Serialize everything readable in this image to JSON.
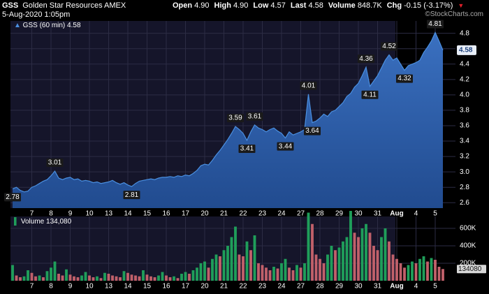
{
  "header": {
    "symbol": "GSS",
    "name": "Golden Star Resources",
    "exchange": "AMEX",
    "datetime": "5-Aug-2020 1:05pm",
    "credit": "©StockCharts.com",
    "quote": [
      {
        "label": "Open",
        "value": "4.90"
      },
      {
        "label": "High",
        "value": "4.90"
      },
      {
        "label": "Low",
        "value": "4.57"
      },
      {
        "label": "Last",
        "value": "4.58"
      },
      {
        "label": "Volume",
        "value": "848.7K"
      },
      {
        "label": "Chg",
        "value": "-0.15 (-3.17%)"
      }
    ]
  },
  "chart_data": [
    {
      "type": "area",
      "categories": [
        null,
        null,
        null,
        null,
        null,
        "7",
        null,
        null,
        null,
        null,
        "8",
        null,
        null,
        null,
        null,
        "9",
        null,
        null,
        null,
        null,
        "10",
        null,
        null,
        null,
        null,
        "13",
        null,
        null,
        null,
        null,
        "14",
        null,
        null,
        null,
        null,
        "15",
        null,
        null,
        null,
        null,
        "16",
        null,
        null,
        null,
        null,
        "17",
        null,
        null,
        null,
        null,
        "20",
        null,
        null,
        null,
        null,
        "21",
        null,
        null,
        null,
        null,
        "22",
        null,
        null,
        null,
        null,
        "23",
        null,
        null,
        null,
        null,
        "24",
        null,
        null,
        null,
        null,
        "27",
        null,
        null,
        null,
        null,
        "28",
        null,
        null,
        null,
        null,
        "29",
        null,
        null,
        null,
        null,
        "30",
        null,
        null,
        null,
        null,
        "31",
        null,
        null,
        null,
        null,
        "Aug",
        null,
        null,
        null,
        null,
        "4",
        null,
        null,
        null,
        null,
        "5",
        null,
        null
      ],
      "series": [
        {
          "name": "GSS (60 min)",
          "color": "#4a8fe0",
          "fill": "#2a5ca8",
          "values": [
            2.78,
            2.8,
            2.76,
            2.74,
            2.75,
            2.8,
            2.82,
            2.85,
            2.88,
            2.9,
            2.95,
            3.01,
            2.92,
            2.9,
            2.92,
            2.93,
            2.9,
            2.91,
            2.88,
            2.89,
            2.88,
            2.86,
            2.87,
            2.85,
            2.86,
            2.87,
            2.89,
            2.86,
            2.84,
            2.86,
            2.83,
            2.81,
            2.85,
            2.88,
            2.89,
            2.9,
            2.91,
            2.9,
            2.92,
            2.93,
            2.93,
            2.94,
            2.93,
            2.95,
            2.94,
            2.96,
            2.95,
            2.98,
            3.02,
            3.08,
            3.1,
            3.09,
            3.15,
            3.22,
            3.28,
            3.35,
            3.42,
            3.5,
            3.59,
            3.55,
            3.5,
            3.41,
            3.52,
            3.61,
            3.57,
            3.55,
            3.52,
            3.55,
            3.57,
            3.53,
            3.5,
            3.44,
            3.52,
            3.48,
            3.5,
            3.52,
            3.55,
            4.01,
            3.64,
            3.66,
            3.7,
            3.75,
            3.72,
            3.78,
            3.8,
            3.85,
            3.9,
            3.98,
            4.02,
            4.1,
            4.15,
            4.25,
            4.36,
            4.11,
            4.18,
            4.25,
            4.35,
            4.45,
            4.52,
            4.45,
            4.48,
            4.4,
            4.32,
            4.38,
            4.4,
            4.42,
            4.45,
            4.55,
            4.62,
            4.7,
            4.81,
            4.7,
            4.58
          ],
          "value_labels": [
            "2.78",
            null,
            null,
            null,
            null,
            null,
            null,
            null,
            null,
            null,
            null,
            "3.01",
            null,
            null,
            null,
            null,
            null,
            null,
            null,
            null,
            null,
            null,
            null,
            null,
            null,
            null,
            null,
            null,
            null,
            null,
            null,
            "2.81",
            null,
            null,
            null,
            null,
            null,
            null,
            null,
            null,
            null,
            null,
            null,
            null,
            null,
            null,
            null,
            null,
            null,
            null,
            null,
            null,
            null,
            null,
            null,
            null,
            null,
            null,
            "3.59",
            null,
            null,
            "3.41",
            null,
            "3.61",
            null,
            null,
            null,
            null,
            null,
            null,
            null,
            "3.44",
            null,
            null,
            null,
            null,
            null,
            "4.01",
            "3.64",
            null,
            null,
            null,
            null,
            null,
            null,
            null,
            null,
            null,
            null,
            null,
            null,
            null,
            "4.36",
            "4.11",
            null,
            null,
            null,
            null,
            "4.52",
            null,
            null,
            null,
            "4.32",
            null,
            null,
            null,
            null,
            null,
            null,
            null,
            "4.81",
            null,
            null
          ]
        }
      ],
      "ylim": [
        2.53,
        4.96
      ],
      "yticks": [
        2.6,
        2.8,
        {
          "value": 3,
          "label": "3.0"
        },
        3.2,
        3.4,
        3.6,
        3.8,
        {
          "value": 4,
          "label": "4.0"
        },
        4.2,
        4.4,
        4.6,
        4.8
      ],
      "grid": true
    },
    {
      "type": "bar",
      "series": [
        {
          "name": "Volume",
          "legend_value": "134,080",
          "up_color": "#1f9e5a",
          "down_color": "#c0606a",
          "values": [
            180000,
            60000,
            40000,
            50000,
            120000,
            90000,
            50000,
            60000,
            40000,
            110000,
            150000,
            220000,
            80000,
            60000,
            130000,
            70000,
            50000,
            40000,
            60000,
            100000,
            60000,
            40000,
            50000,
            30000,
            90000,
            80000,
            60000,
            50000,
            40000,
            110000,
            90000,
            70000,
            60000,
            50000,
            120000,
            70000,
            50000,
            40000,
            60000,
            100000,
            60000,
            40000,
            50000,
            30000,
            80000,
            100000,
            80000,
            120000,
            150000,
            200000,
            220000,
            150000,
            250000,
            300000,
            280000,
            350000,
            400000,
            500000,
            620000,
            300000,
            280000,
            450000,
            350000,
            520000,
            200000,
            180000,
            150000,
            120000,
            160000,
            140000,
            200000,
            250000,
            150000,
            120000,
            180000,
            150000,
            200000,
            780000,
            650000,
            300000,
            250000,
            200000,
            300000,
            400000,
            350000,
            380000,
            450000,
            500000,
            800000,
            550000,
            500000,
            600000,
            650000,
            550000,
            400000,
            350000,
            500000,
            600000,
            450000,
            300000,
            250000,
            200000,
            150000,
            180000,
            220000,
            200000,
            250000,
            280000,
            220000,
            260000,
            240000,
            160000,
            134080
          ]
        }
      ],
      "ylim": [
        0,
        736000
      ],
      "yticks": [
        {
          "value": 200000,
          "label": "200K"
        },
        {
          "value": 400000,
          "label": "400K"
        },
        {
          "value": 600000,
          "label": "600K"
        }
      ],
      "grid": true
    }
  ]
}
